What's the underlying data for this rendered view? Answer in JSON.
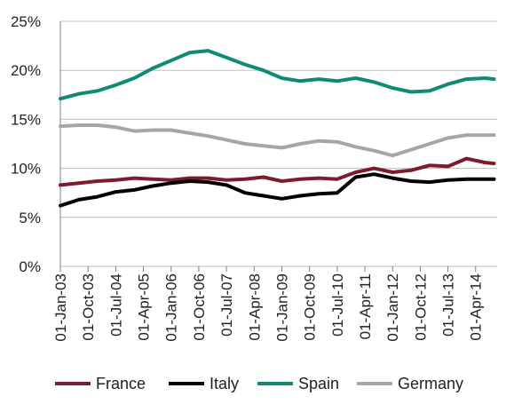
{
  "chart_data": {
    "type": "line",
    "title": "",
    "xlabel": "",
    "ylabel": "",
    "ylim": [
      0,
      25
    ],
    "y_ticks": [
      "0%",
      "5%",
      "10%",
      "15%",
      "20%",
      "25%"
    ],
    "x_tick_labels": [
      "01-Jan-03",
      "01-Oct-03",
      "01-Jul-04",
      "01-Apr-05",
      "01-Jan-06",
      "01-Oct-06",
      "01-Jul-07",
      "01-Apr-08",
      "01-Jan-09",
      "01-Oct-09",
      "01-Jul-10",
      "01-Apr-11",
      "01-Jan-12",
      "01-Oct-12",
      "01-Jul-13",
      "01-Apr-14"
    ],
    "x_dates": [
      "2003-01",
      "2003-07",
      "2004-01",
      "2004-07",
      "2005-01",
      "2005-07",
      "2006-01",
      "2006-07",
      "2007-01",
      "2007-07",
      "2008-01",
      "2008-07",
      "2009-01",
      "2009-07",
      "2010-01",
      "2010-07",
      "2011-01",
      "2011-07",
      "2012-01",
      "2012-07",
      "2013-01",
      "2013-07",
      "2014-01",
      "2014-07",
      "2014-10"
    ],
    "grid": "horizontal",
    "legend": "bottom",
    "series": [
      {
        "name": "France",
        "color": "#7b1d2e",
        "values": [
          8.3,
          8.5,
          8.7,
          8.8,
          9.0,
          8.9,
          8.8,
          9.0,
          9.0,
          8.8,
          8.9,
          9.1,
          8.7,
          8.9,
          9.0,
          8.9,
          9.6,
          10.0,
          9.6,
          9.8,
          10.3,
          10.2,
          11.0,
          10.6,
          10.5
        ]
      },
      {
        "name": "Italy",
        "color": "#000000",
        "values": [
          6.2,
          6.8,
          7.1,
          7.6,
          7.8,
          8.2,
          8.5,
          8.7,
          8.6,
          8.3,
          7.5,
          7.2,
          6.9,
          7.2,
          7.4,
          7.5,
          9.1,
          9.4,
          9.0,
          8.7,
          8.6,
          8.8,
          8.9,
          8.9,
          8.9
        ]
      },
      {
        "name": "Spain",
        "color": "#0e8a76",
        "values": [
          17.1,
          17.6,
          17.9,
          18.5,
          19.2,
          20.2,
          21.0,
          21.8,
          22.0,
          21.3,
          20.6,
          20.0,
          19.2,
          18.9,
          19.1,
          18.9,
          19.2,
          18.8,
          18.2,
          17.8,
          17.9,
          18.6,
          19.1,
          19.2,
          19.1
        ]
      },
      {
        "name": "Germany",
        "color": "#a6a6a6",
        "values": [
          14.3,
          14.4,
          14.4,
          14.2,
          13.8,
          13.9,
          13.9,
          13.6,
          13.3,
          12.9,
          12.5,
          12.3,
          12.1,
          12.5,
          12.8,
          12.7,
          12.2,
          11.8,
          11.3,
          11.9,
          12.5,
          13.1,
          13.4,
          13.4,
          13.4
        ]
      }
    ]
  }
}
